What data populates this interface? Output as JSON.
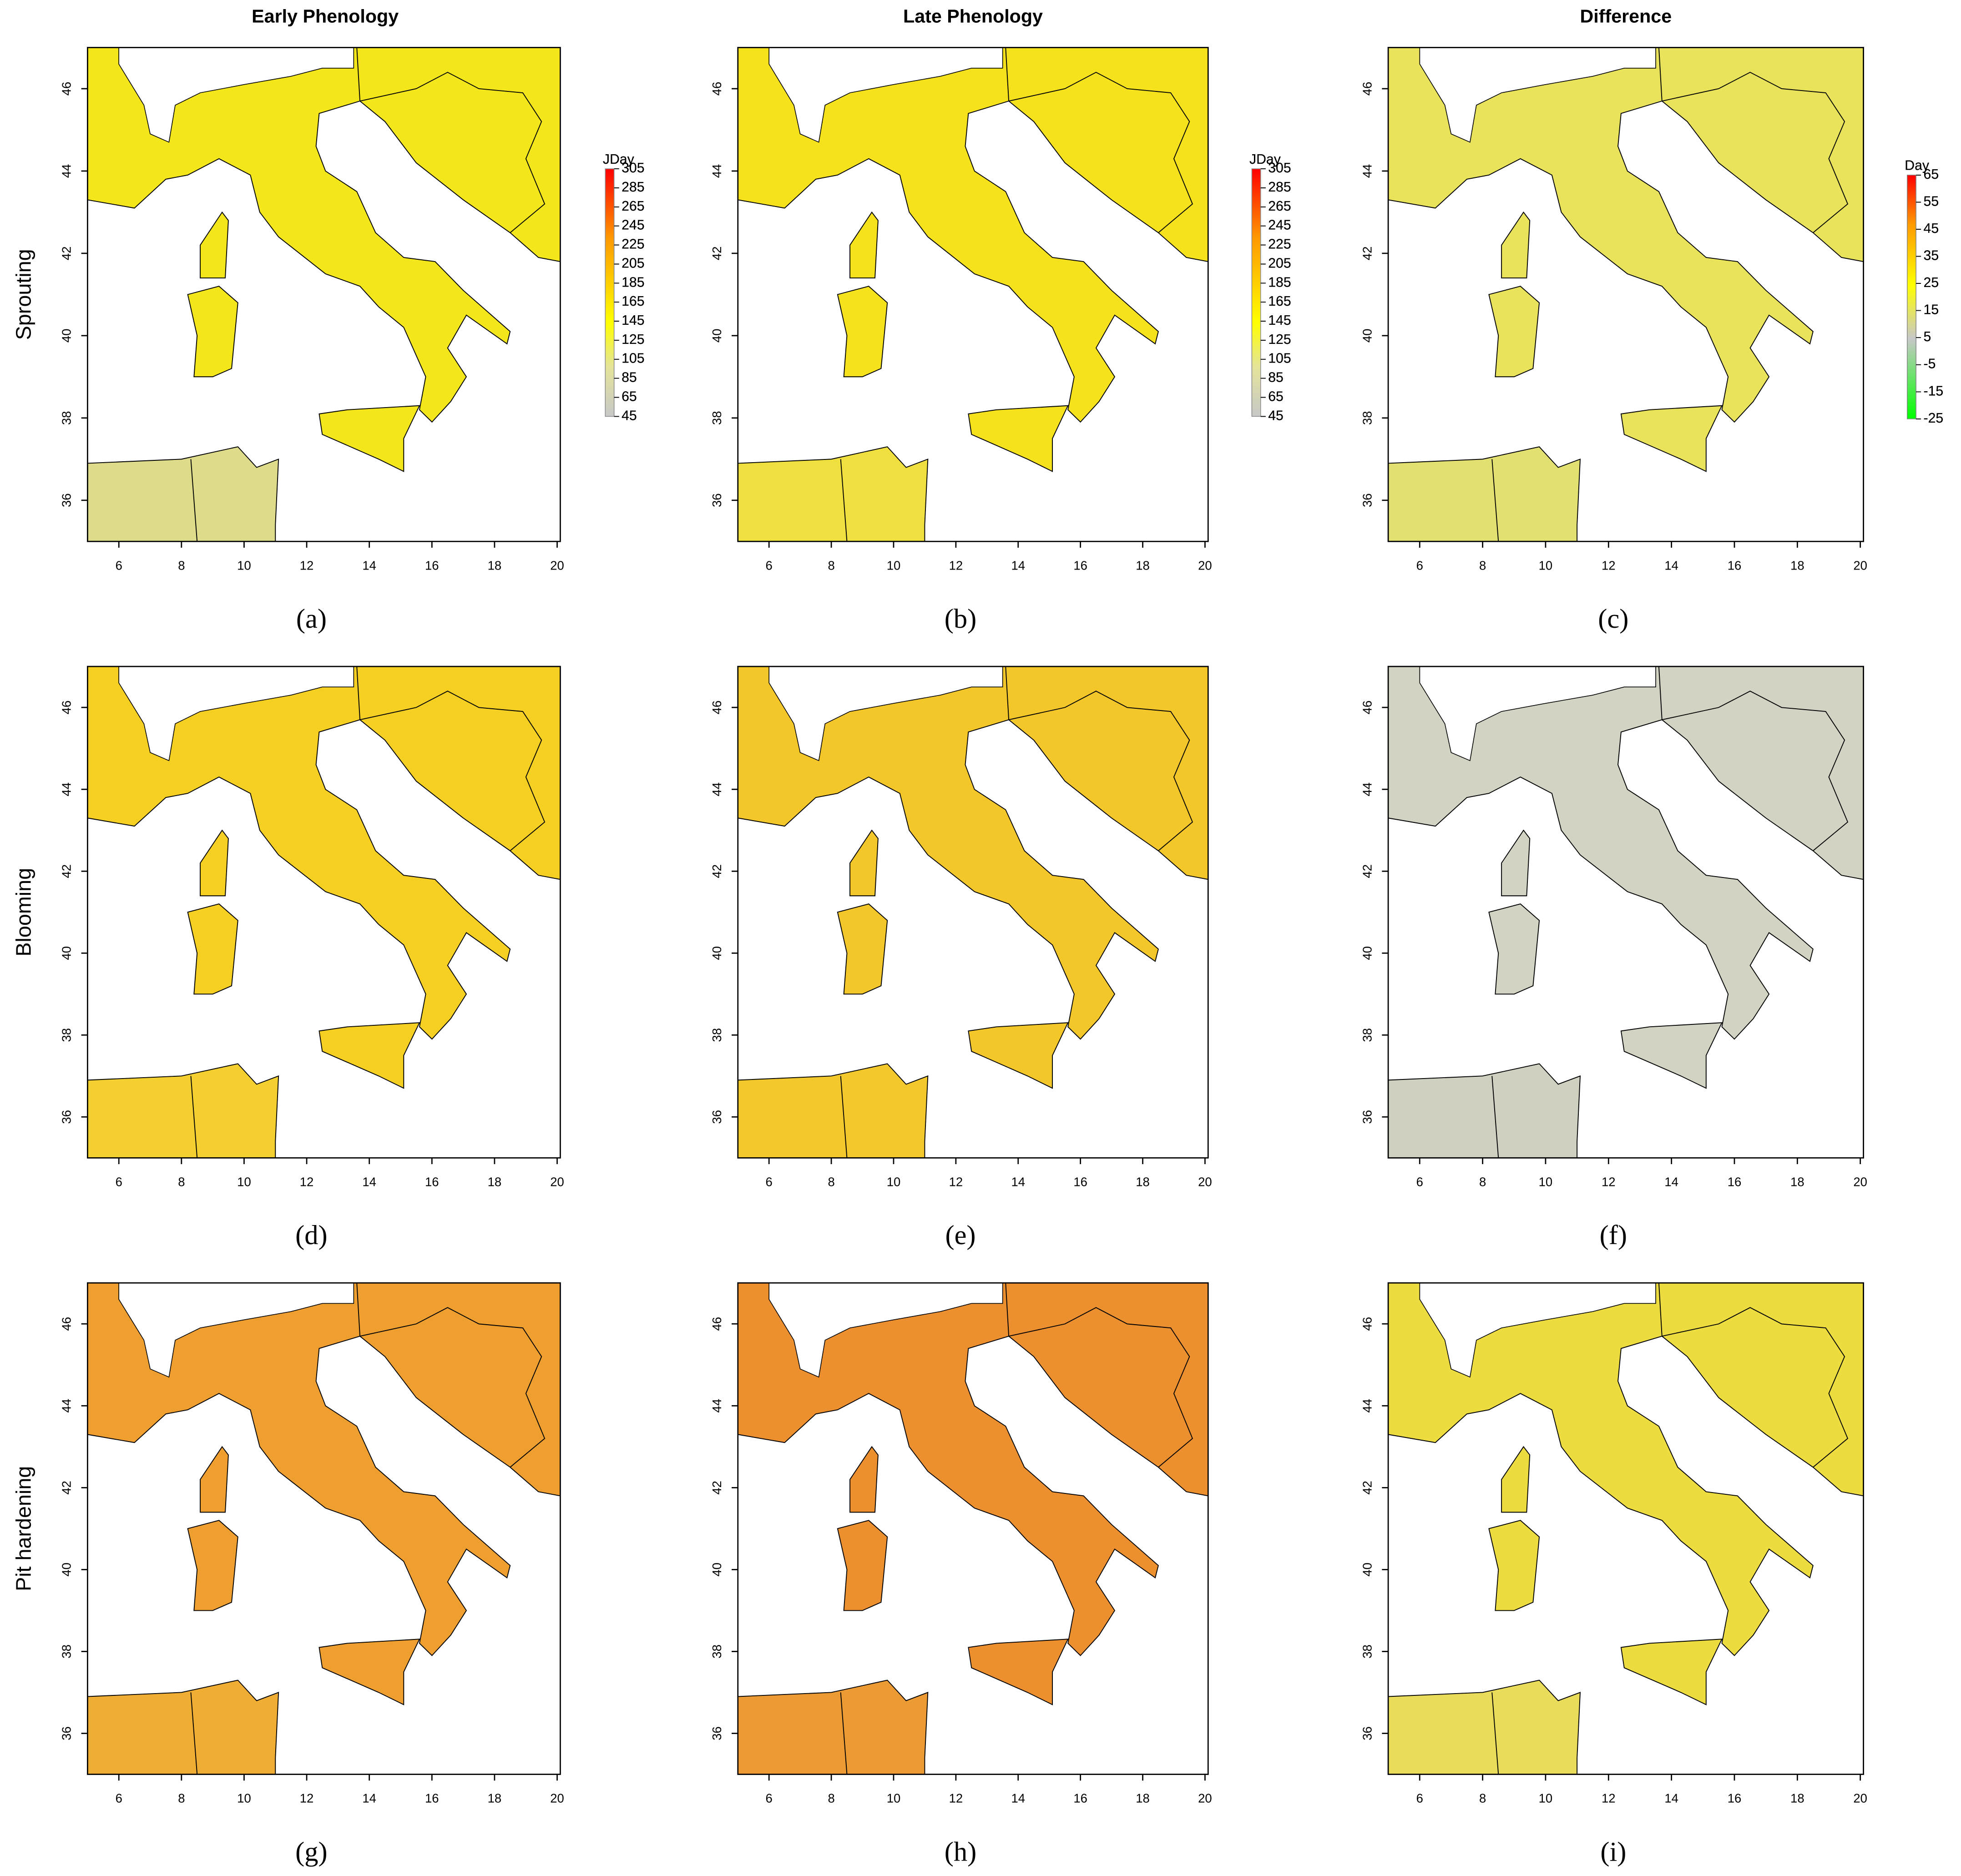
{
  "columns": [
    {
      "title": "Early Phenology",
      "legend": {
        "title": "JDay",
        "ticks": [
          305,
          285,
          265,
          245,
          225,
          205,
          185,
          165,
          145,
          125,
          105,
          85,
          65,
          45
        ]
      }
    },
    {
      "title": "Late Phenology",
      "legend": {
        "title": "JDay",
        "ticks": [
          305,
          285,
          265,
          245,
          225,
          205,
          185,
          165,
          145,
          125,
          105,
          85,
          65,
          45
        ]
      }
    },
    {
      "title": "Difference",
      "legend": {
        "title": "Day",
        "ticks": [
          65,
          55,
          45,
          35,
          25,
          15,
          5,
          -5,
          -15,
          -25
        ]
      }
    }
  ],
  "rows": [
    "Sprouting",
    "Blooming",
    "Pit hardening"
  ],
  "panels": [
    "(a)",
    "(b)",
    "(c)",
    "(d)",
    "(e)",
    "(f)",
    "(g)",
    "(h)",
    "(i)"
  ],
  "lon_ticks": [
    6,
    8,
    10,
    12,
    14,
    16,
    18,
    20
  ],
  "lat_ticks": [
    36,
    38,
    40,
    42,
    44,
    46
  ],
  "xlim": [
    5,
    20.1
  ],
  "ylim": [
    35,
    47
  ]
}
